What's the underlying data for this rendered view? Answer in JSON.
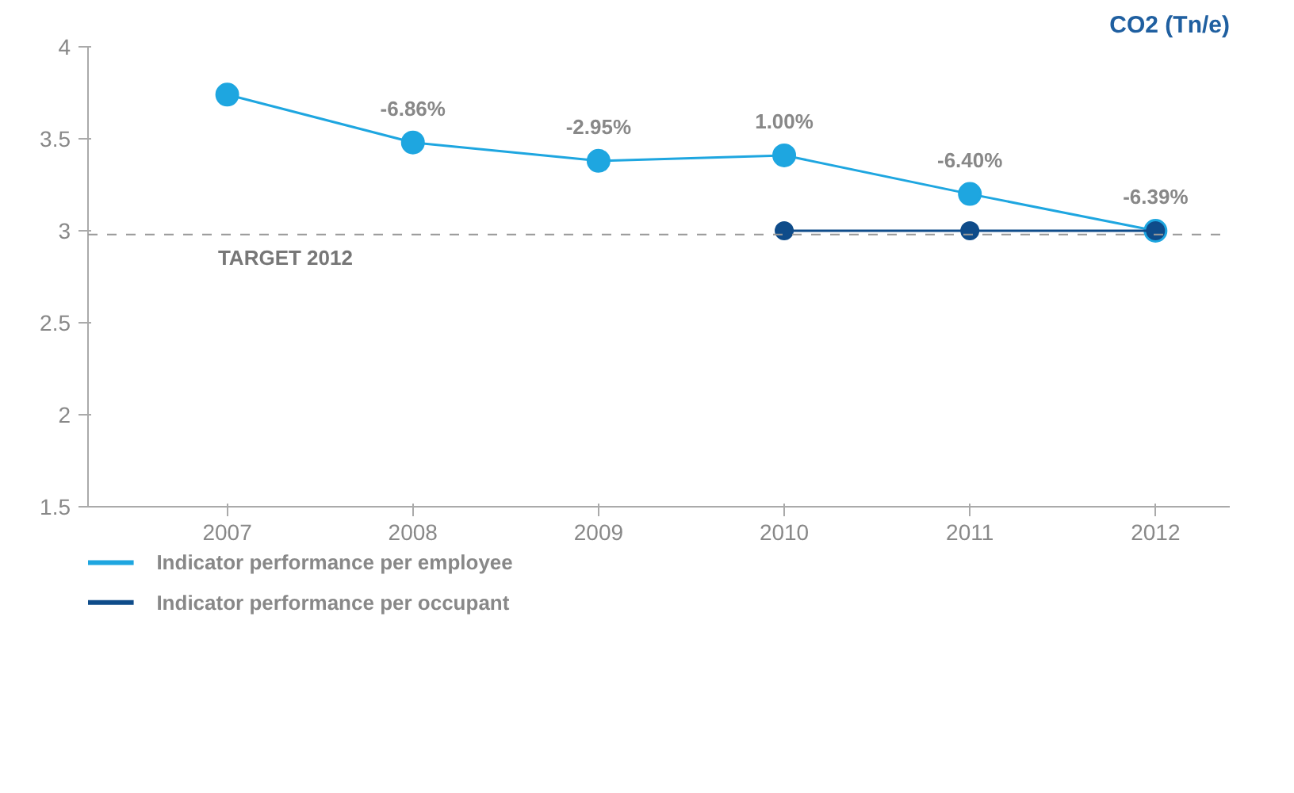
{
  "chart_data": {
    "type": "line",
    "title": "CO2 (Tn/e)",
    "categories": [
      "2007",
      "2008",
      "2009",
      "2010",
      "2011",
      "2012"
    ],
    "series": [
      {
        "name": "Indicator performance per employee",
        "color": "#1ea6e0",
        "values": [
          3.74,
          3.48,
          3.38,
          3.41,
          3.2,
          3.0
        ]
      },
      {
        "name": "Indicator performance per occupant",
        "color": "#0f4c8a",
        "values": [
          null,
          null,
          null,
          3.0,
          3.0,
          3.0
        ]
      }
    ],
    "ylim": [
      1.5,
      4
    ],
    "yticks": [
      1.5,
      2,
      2.5,
      3,
      3.5,
      4
    ],
    "ref_lines": [
      {
        "axis": "y",
        "value": 2.98,
        "label": "TARGET 2012",
        "color": "#999999",
        "line_style": "dashed"
      }
    ],
    "annotations": [
      {
        "text": "-6.86%",
        "x": "2008",
        "y": 3.48
      },
      {
        "text": "-2.95%",
        "x": "2009",
        "y": 3.38
      },
      {
        "text": "1.00%",
        "x": "2010",
        "y": 3.41
      },
      {
        "text": "-6.40%",
        "x": "2011",
        "y": 3.2
      },
      {
        "text": "-6.39%",
        "x": "2012",
        "y": 3.0
      }
    ],
    "marker": "circle",
    "line_style": "solid",
    "grid": false,
    "legend": "bottom"
  }
}
